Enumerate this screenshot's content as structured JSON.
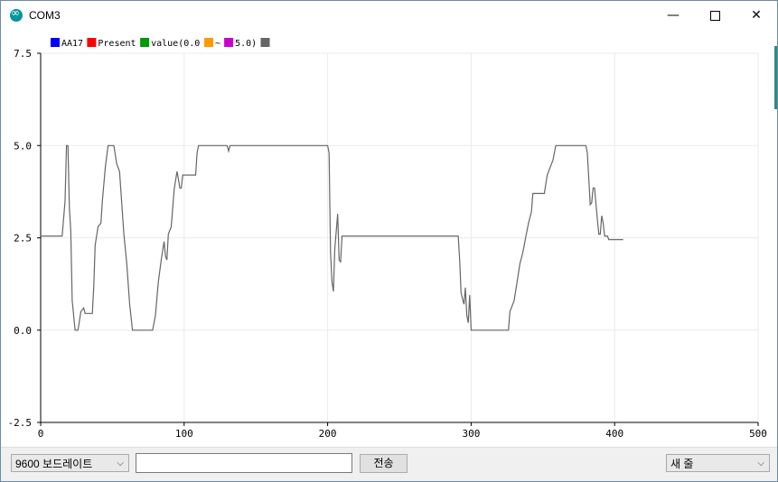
{
  "window": {
    "title": "COM3",
    "minimize_glyph": "—",
    "close_glyph": "✕"
  },
  "legend": [
    {
      "label": "AA17",
      "color": "#0000ff"
    },
    {
      "label": "Present",
      "color": "#ff0000"
    },
    {
      "label": "value(0.0",
      "color": "#009900"
    },
    {
      "label": "~",
      "color": "#ff9900"
    },
    {
      "label": "5.0)",
      "color": "#cc00cc"
    },
    {
      "label": "",
      "color": "#666666"
    }
  ],
  "chart_data": {
    "type": "line",
    "xlim": [
      0,
      500
    ],
    "ylim": [
      -2.5,
      7.5
    ],
    "x_ticks": [
      "0",
      "100",
      "200",
      "300",
      "400",
      "500"
    ],
    "y_ticks": [
      "7.5",
      "5.0",
      "2.5",
      "0.0",
      "-2.5"
    ],
    "grid": true,
    "series": [
      {
        "color": "#666666",
        "points": [
          [
            0,
            2.55
          ],
          [
            15,
            2.55
          ],
          [
            17,
            3.5
          ],
          [
            18,
            5.0
          ],
          [
            19,
            5.0
          ],
          [
            20,
            3.3
          ],
          [
            21,
            2.7
          ],
          [
            22,
            0.8
          ],
          [
            24,
            0.0
          ],
          [
            26,
            0.0
          ],
          [
            28,
            0.5
          ],
          [
            30,
            0.6
          ],
          [
            31,
            0.45
          ],
          [
            36,
            0.45
          ],
          [
            37,
            1.2
          ],
          [
            38,
            2.3
          ],
          [
            40,
            2.8
          ],
          [
            42,
            2.9
          ],
          [
            43,
            3.5
          ],
          [
            45,
            4.4
          ],
          [
            47,
            5.0
          ],
          [
            51,
            5.0
          ],
          [
            53,
            4.5
          ],
          [
            55,
            4.3
          ],
          [
            58,
            2.6
          ],
          [
            60,
            1.8
          ],
          [
            62,
            0.7
          ],
          [
            64,
            0.0
          ],
          [
            78,
            0.0
          ],
          [
            80,
            0.4
          ],
          [
            82,
            1.3
          ],
          [
            84,
            1.9
          ],
          [
            86,
            2.4
          ],
          [
            87,
            2.0
          ],
          [
            88,
            1.9
          ],
          [
            89,
            2.6
          ],
          [
            91,
            2.8
          ],
          [
            93,
            3.8
          ],
          [
            95,
            4.3
          ],
          [
            96,
            4.1
          ],
          [
            97,
            3.85
          ],
          [
            98,
            3.85
          ],
          [
            99,
            4.2
          ],
          [
            108,
            4.2
          ],
          [
            109,
            4.8
          ],
          [
            110,
            5.0
          ],
          [
            130,
            5.0
          ],
          [
            131,
            4.85
          ],
          [
            132,
            5.0
          ],
          [
            200,
            5.0
          ],
          [
            201,
            4.8
          ],
          [
            202,
            2.1
          ],
          [
            203,
            1.3
          ],
          [
            204,
            1.05
          ],
          [
            205,
            2.2
          ],
          [
            207,
            3.15
          ],
          [
            208,
            1.9
          ],
          [
            209,
            1.85
          ],
          [
            210,
            2.55
          ],
          [
            291,
            2.55
          ],
          [
            292,
            1.9
          ],
          [
            293,
            1.0
          ],
          [
            295,
            0.7
          ],
          [
            296,
            1.15
          ],
          [
            297,
            0.4
          ],
          [
            298,
            0.2
          ],
          [
            299,
            0.95
          ],
          [
            300,
            0.0
          ],
          [
            326,
            0.0
          ],
          [
            327,
            0.5
          ],
          [
            330,
            0.8
          ],
          [
            332,
            1.3
          ],
          [
            334,
            1.8
          ],
          [
            336,
            2.1
          ],
          [
            338,
            2.5
          ],
          [
            340,
            2.9
          ],
          [
            342,
            3.2
          ],
          [
            343,
            3.7
          ],
          [
            351,
            3.7
          ],
          [
            353,
            4.2
          ],
          [
            355,
            4.4
          ],
          [
            357,
            4.6
          ],
          [
            358,
            4.8
          ],
          [
            359,
            5.0
          ],
          [
            380,
            5.0
          ],
          [
            381,
            4.8
          ],
          [
            383,
            3.4
          ],
          [
            384,
            3.45
          ],
          [
            385,
            3.85
          ],
          [
            386,
            3.85
          ],
          [
            387,
            3.4
          ],
          [
            388,
            3.0
          ],
          [
            389,
            2.6
          ],
          [
            390,
            2.6
          ],
          [
            391,
            3.1
          ],
          [
            392,
            2.9
          ],
          [
            393,
            2.55
          ],
          [
            395,
            2.55
          ],
          [
            396,
            2.45
          ],
          [
            406,
            2.45
          ]
        ]
      }
    ]
  },
  "bottom": {
    "baud_value": "9600 보드레이트",
    "send_placeholder": "",
    "send_label": "전송",
    "line_ending_value": "새 줄",
    "chevron_glyph": "⌵"
  }
}
